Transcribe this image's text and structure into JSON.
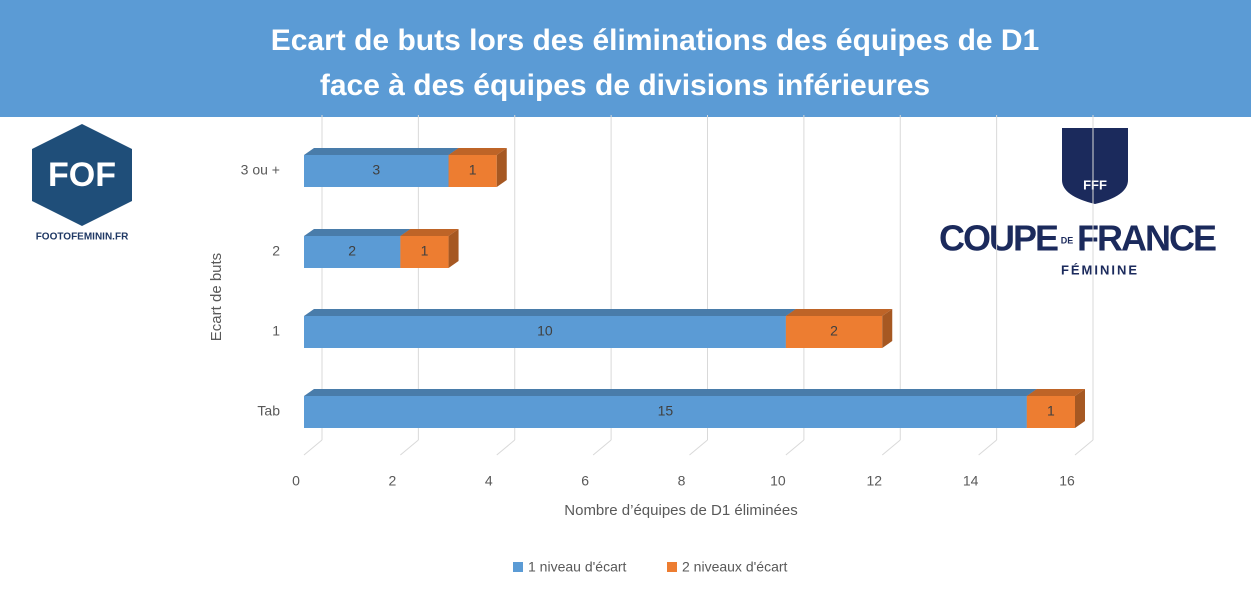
{
  "chart_data": {
    "type": "bar3d-stacked-horizontal",
    "title": [
      "Ecart de buts lors des éliminations des équipes de D1",
      "face à des équipes de divisions inférieures"
    ],
    "x_label": "Nombre d’équipes de D1 éliminées",
    "y_label": "Ecart de buts",
    "categories": [
      "3 ou +",
      "2",
      "1",
      "Tab"
    ],
    "series": [
      {
        "name": "1 niveau d'écart",
        "color": "#5b9bd5",
        "values": [
          3,
          2,
          10,
          15
        ]
      },
      {
        "name": "2 niveaux d'écart",
        "color": "#ed7d31",
        "values": [
          1,
          1,
          2,
          1
        ]
      }
    ],
    "xlim": [
      0,
      16
    ],
    "xticks": [
      0,
      2,
      4,
      6,
      8,
      10,
      12,
      14,
      16
    ],
    "grid": true,
    "legend": "bottom"
  },
  "logos": {
    "fof": "FOF",
    "site": "FOOTOFEMININ.FR",
    "fff": "FFF",
    "coupe": "COUPE",
    "de": "DE",
    "france": "FRANCE",
    "feminine": "FÉMININE"
  }
}
